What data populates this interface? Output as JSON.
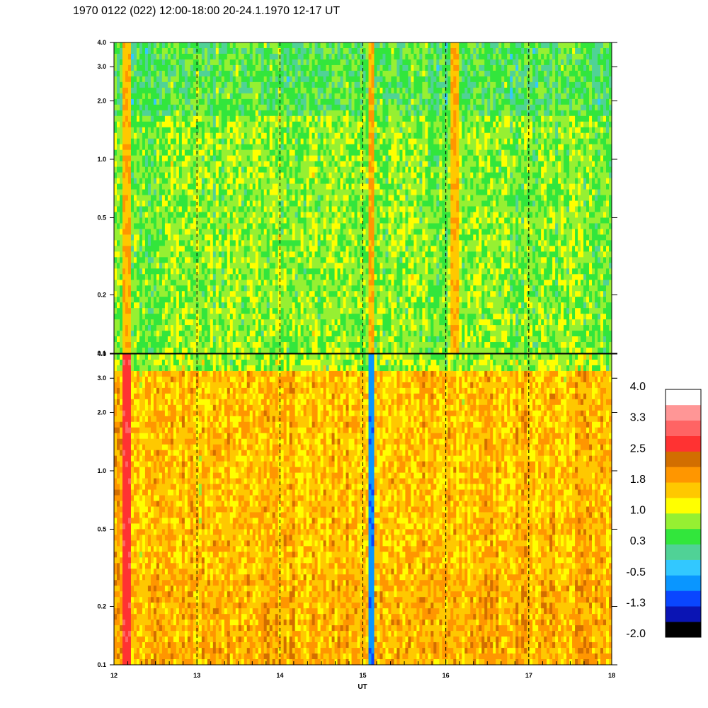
{
  "title": "1970 0122 (022) 12:00-18:00 20-24.1.1970  12-17 UT",
  "colors": {
    "palette": [
      "#000000",
      "#0a14b4",
      "#0a46ff",
      "#0a96ff",
      "#32c8ff",
      "#50d296",
      "#32e63c",
      "#96f032",
      "#ffff00",
      "#ffc800",
      "#ff9600",
      "#d26e00",
      "#ff3232",
      "#ff6464",
      "#ff9696",
      "#ffffff"
    ]
  },
  "chart_data": [
    {
      "type": "heatmap",
      "panel": "upper",
      "x_range": [
        12,
        18
      ],
      "y_range": [
        0.1,
        4.0
      ],
      "y_scale": "log",
      "x_ticks": [
        "12",
        "13",
        "14",
        "15",
        "16",
        "17",
        "18"
      ],
      "y_ticks": [
        "0.1",
        "0.2",
        "0.5",
        "1.0",
        "2.0",
        "3.0",
        "4.0"
      ],
      "dashed_hour_markers": [
        13,
        14,
        15,
        16,
        17
      ],
      "dominant_level": 0.5,
      "low_band_level": 0.7,
      "bursts": [
        {
          "x": 12.15,
          "value": 1.8
        },
        {
          "x": 15.1,
          "value": 1.9
        },
        {
          "x": 16.1,
          "value": 1.8
        }
      ]
    },
    {
      "type": "heatmap",
      "panel": "lower",
      "x_range": [
        12,
        18
      ],
      "y_range": [
        0.1,
        4.0
      ],
      "y_scale": "log",
      "x_ticks": [
        "12",
        "13",
        "14",
        "15",
        "16",
        "17",
        "18"
      ],
      "y_ticks": [
        "0.1",
        "0.2",
        "0.5",
        "1.0",
        "2.0",
        "3.0",
        "4.0"
      ],
      "dashed_hour_markers": [
        13,
        14,
        15,
        16,
        17
      ],
      "dominant_level": 1.7,
      "top_band_level": 0.8,
      "bursts": [
        {
          "x": 12.15,
          "value": 3.0
        },
        {
          "x": 15.1,
          "value": -1.0
        }
      ]
    }
  ],
  "xlabel": "UT",
  "colorbar": {
    "labels": [
      "4.0",
      "3.3",
      "2.5",
      "1.8",
      "1.0",
      "0.3",
      "-0.5",
      "-1.3",
      "-2.0"
    ],
    "range": [
      -2.0,
      4.0
    ]
  }
}
